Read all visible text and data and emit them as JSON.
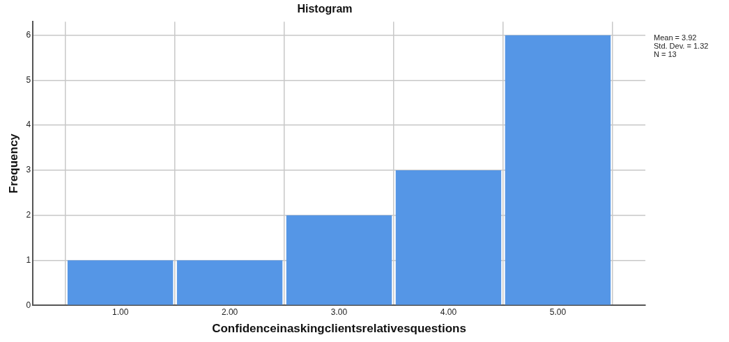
{
  "chart_data": {
    "type": "histogram",
    "title": "Histogram",
    "xlabel": "Confidenceinaskingclientsrelativesquestions",
    "ylabel": "Frequency",
    "bins": [
      0.5,
      1.5,
      2.5,
      3.5,
      4.5,
      5.5
    ],
    "values": [
      1,
      1,
      2,
      3,
      6
    ],
    "color": "#5596e6",
    "xlim": [
      0.2,
      5.8
    ],
    "xticks": [
      {
        "value": 1,
        "label": "1.00"
      },
      {
        "value": 2,
        "label": "2.00"
      },
      {
        "value": 3,
        "label": "3.00"
      },
      {
        "value": 4,
        "label": "4.00"
      },
      {
        "value": 5,
        "label": "5.00"
      }
    ],
    "ylim": [
      0,
      6.3
    ],
    "yticks": [
      0,
      1,
      2,
      3,
      4,
      5,
      6
    ],
    "grid": true,
    "legend": false,
    "annotations": [
      "Mean = 3.92",
      "Std. Dev. = 1.32",
      "N = 13"
    ]
  }
}
